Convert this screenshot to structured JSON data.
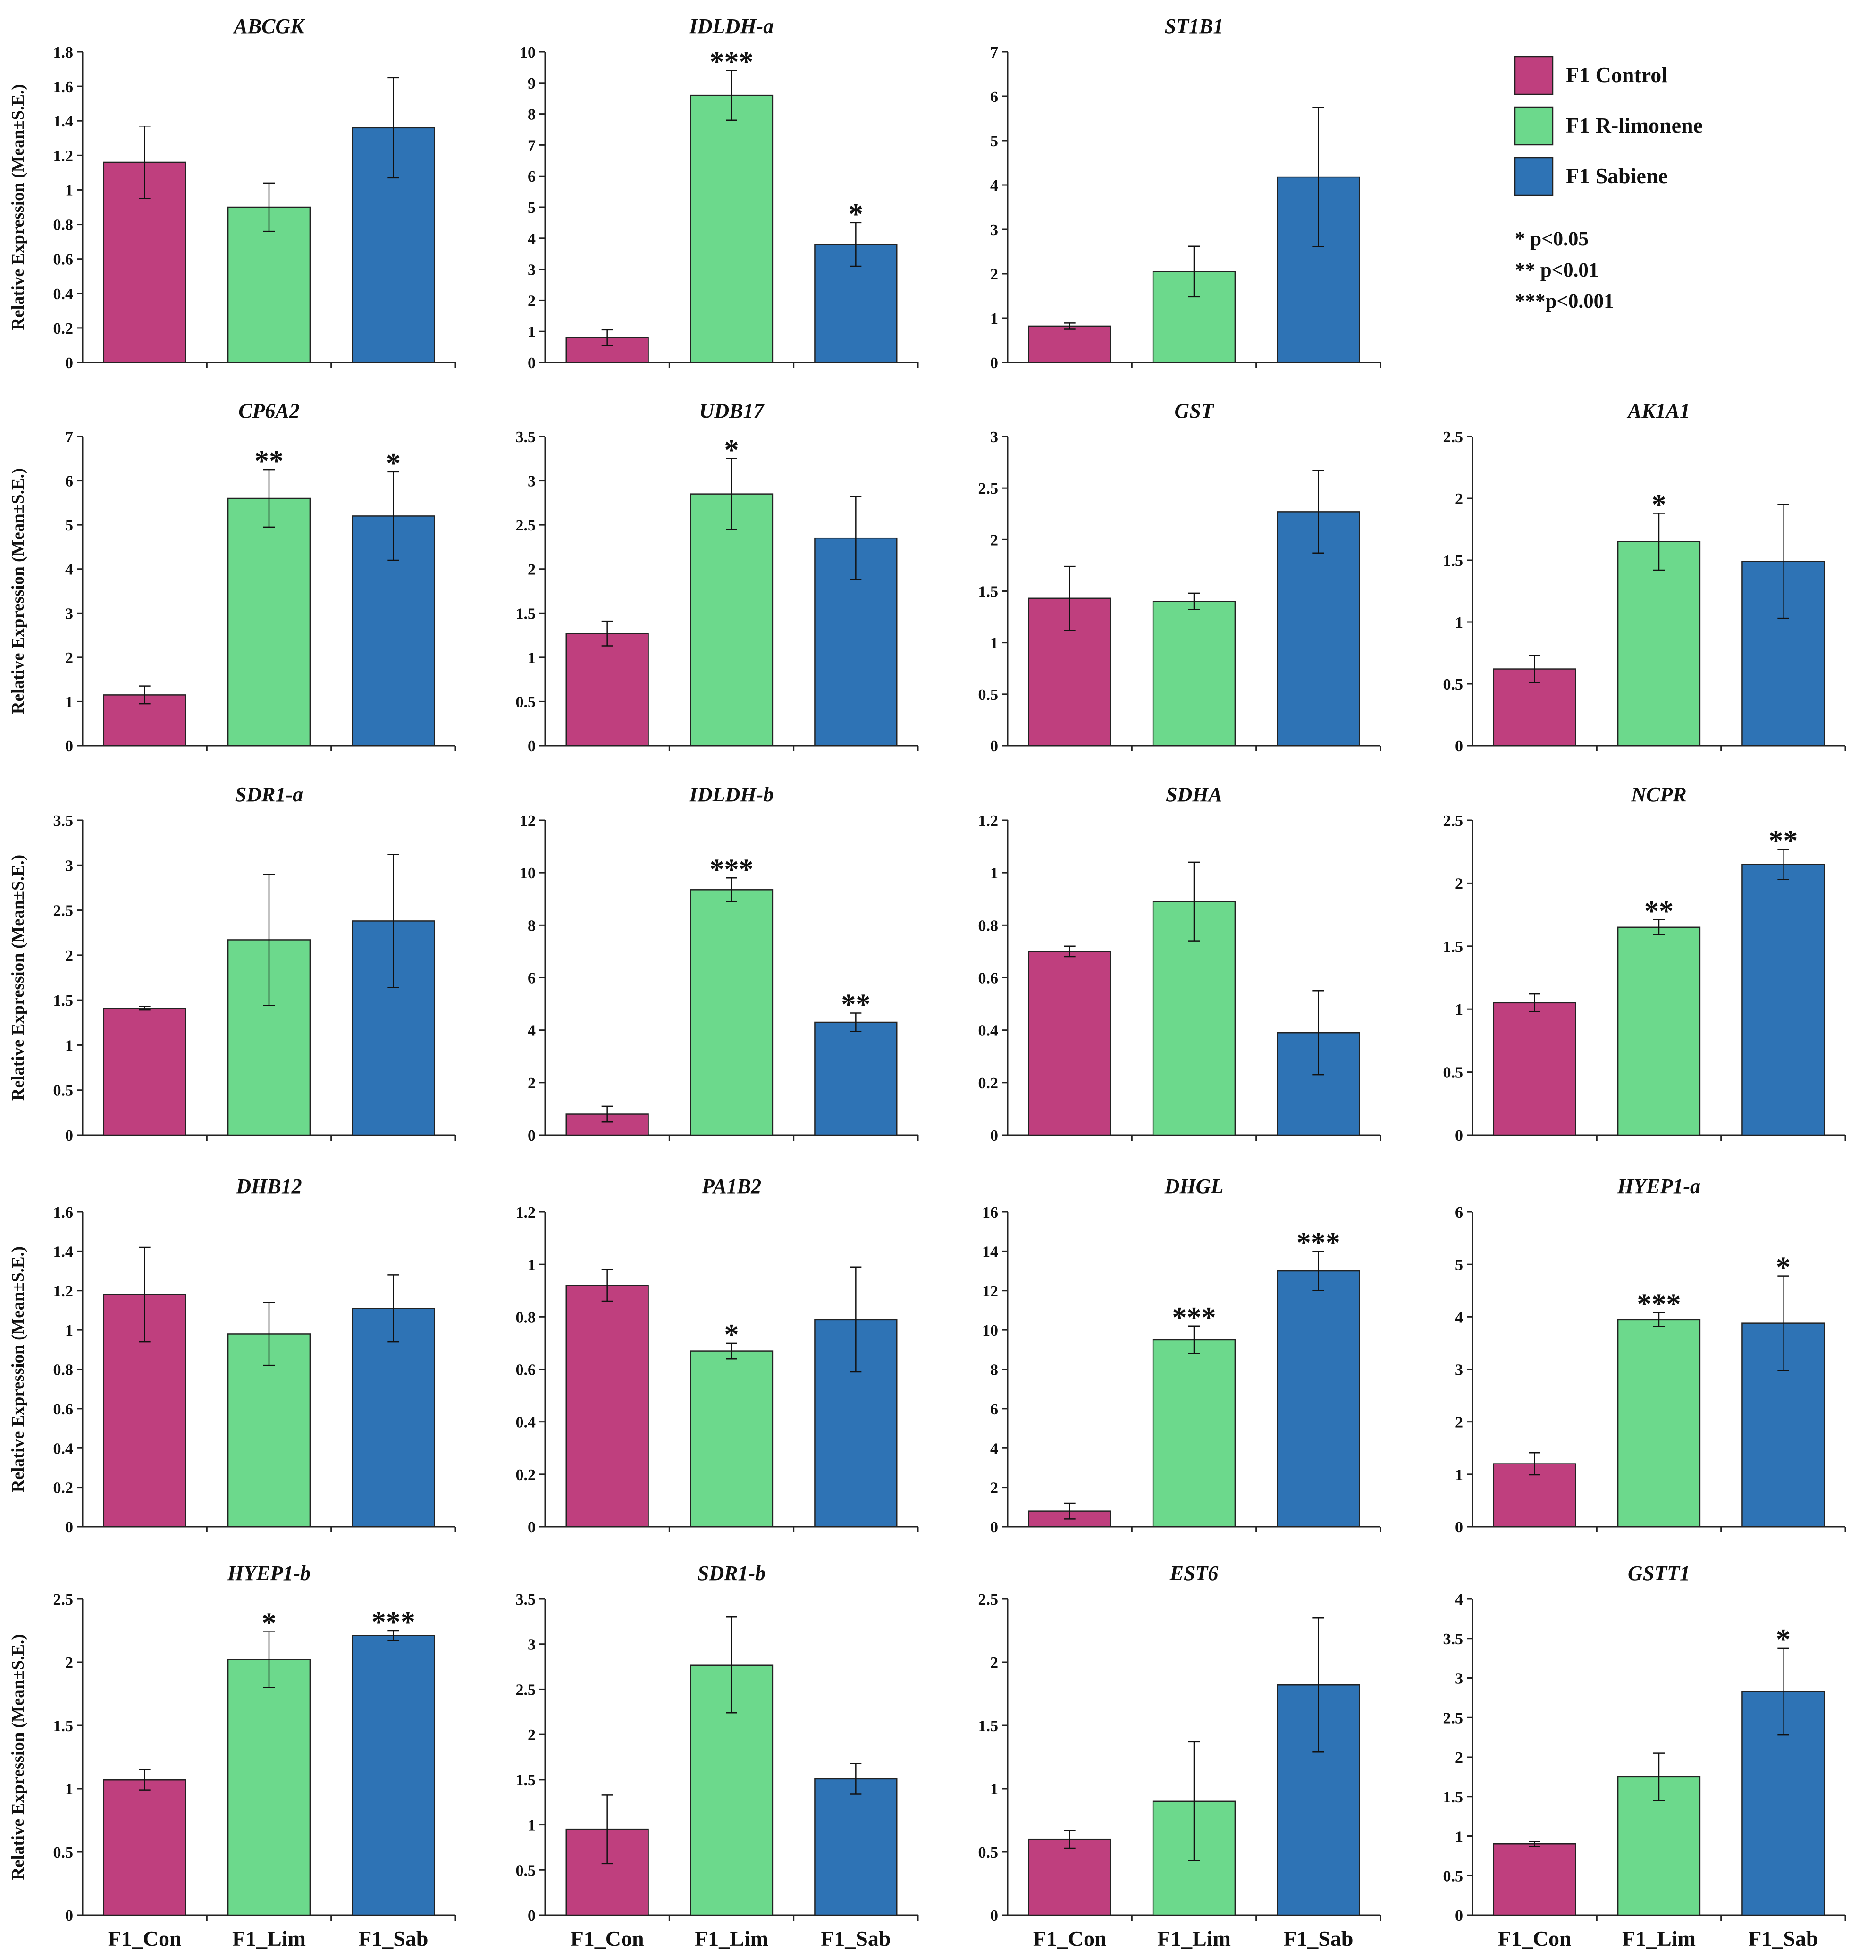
{
  "colors": {
    "control": "#bf3f7e",
    "limonene": "#6cd98c",
    "sabinene": "#2e73b5",
    "axis": "#222222"
  },
  "legend": {
    "items": [
      {
        "label": "F1 Control",
        "color": "#bf3f7e"
      },
      {
        "label": "F1 R-limonene",
        "color": "#6cd98c"
      },
      {
        "label": "F1 Sabiene",
        "color": "#2e73b5"
      }
    ],
    "significance": [
      "* p<0.05",
      "** p<0.01",
      "***p<0.001"
    ]
  },
  "ylabel": "Relative Expression (Mean±S.E.)",
  "categories": [
    "F1_Con",
    "F1_Lim",
    "F1_Sab"
  ],
  "chart_data": [
    {
      "type": "bar",
      "title": "ABCGK",
      "ylim": [
        0,
        1.8
      ],
      "ticks": [
        "0",
        "0.2",
        "0.4",
        "0.6",
        "0.8",
        "1",
        "1.2",
        "1.4",
        "1.6",
        "1.8"
      ],
      "values": [
        1.16,
        0.9,
        1.36
      ],
      "errors": [
        0.21,
        0.14,
        0.29
      ],
      "sig": [
        "",
        "",
        ""
      ]
    },
    {
      "type": "bar",
      "title": "IDLDH-a",
      "ylim": [
        0,
        10
      ],
      "ticks": [
        "0",
        "1",
        "2",
        "3",
        "4",
        "5",
        "6",
        "7",
        "8",
        "9",
        "10"
      ],
      "values": [
        0.8,
        8.6,
        3.8
      ],
      "errors": [
        0.25,
        0.8,
        0.7
      ],
      "sig": [
        "",
        "***",
        "*"
      ]
    },
    {
      "type": "bar",
      "title": "ST1B1",
      "ylim": [
        0,
        7
      ],
      "ticks": [
        "0",
        "1",
        "2",
        "3",
        "4",
        "5",
        "6",
        "7"
      ],
      "values": [
        0.82,
        2.05,
        4.18
      ],
      "errors": [
        0.07,
        0.57,
        1.57
      ],
      "sig": [
        "",
        "",
        ""
      ]
    },
    {
      "type": "bar",
      "title": "CP6A2",
      "ylim": [
        0,
        7
      ],
      "ticks": [
        "0",
        "1",
        "2",
        "3",
        "4",
        "5",
        "6",
        "7"
      ],
      "values": [
        1.15,
        5.6,
        5.2
      ],
      "errors": [
        0.2,
        0.65,
        1.0
      ],
      "sig": [
        "",
        "**",
        "*"
      ]
    },
    {
      "type": "bar",
      "title": "UDB17",
      "ylim": [
        0,
        3.5
      ],
      "ticks": [
        "0",
        "0.5",
        "1",
        "1.5",
        "2",
        "2.5",
        "3",
        "3.5"
      ],
      "values": [
        1.27,
        2.85,
        2.35
      ],
      "errors": [
        0.14,
        0.4,
        0.47
      ],
      "sig": [
        "",
        "*",
        ""
      ]
    },
    {
      "type": "bar",
      "title": "GST",
      "ylim": [
        0,
        3
      ],
      "ticks": [
        "0",
        "0.5",
        "1",
        "1.5",
        "2",
        "2.5",
        "3"
      ],
      "values": [
        1.43,
        1.4,
        2.27
      ],
      "errors": [
        0.31,
        0.08,
        0.4
      ],
      "sig": [
        "",
        "",
        ""
      ]
    },
    {
      "type": "bar",
      "title": "AK1A1",
      "ylim": [
        0,
        2.5
      ],
      "ticks": [
        "0",
        "0.5",
        "1",
        "1.5",
        "2",
        "2.5"
      ],
      "values": [
        0.62,
        1.65,
        1.49
      ],
      "errors": [
        0.11,
        0.23,
        0.46
      ],
      "sig": [
        "",
        "*",
        ""
      ]
    },
    {
      "type": "bar",
      "title": "SDR1-a",
      "ylim": [
        0,
        3.5
      ],
      "ticks": [
        "0",
        "0.5",
        "1",
        "1.5",
        "2",
        "2.5",
        "3",
        "3.5"
      ],
      "values": [
        1.41,
        2.17,
        2.38
      ],
      "errors": [
        0.02,
        0.73,
        0.74
      ],
      "sig": [
        "",
        "",
        ""
      ]
    },
    {
      "type": "bar",
      "title": "IDLDH-b",
      "ylim": [
        0,
        12
      ],
      "ticks": [
        "0",
        "2",
        "4",
        "6",
        "8",
        "10",
        "12"
      ],
      "values": [
        0.8,
        9.35,
        4.3
      ],
      "errors": [
        0.3,
        0.45,
        0.35
      ],
      "sig": [
        "",
        "***",
        "**"
      ]
    },
    {
      "type": "bar",
      "title": "SDHA",
      "ylim": [
        0,
        1.2
      ],
      "ticks": [
        "0",
        "0.2",
        "0.4",
        "0.6",
        "0.8",
        "1",
        "1.2"
      ],
      "values": [
        0.7,
        0.89,
        0.39
      ],
      "errors": [
        0.02,
        0.15,
        0.16
      ],
      "sig": [
        "",
        "",
        ""
      ]
    },
    {
      "type": "bar",
      "title": "NCPR",
      "ylim": [
        0,
        2.5
      ],
      "ticks": [
        "0",
        "0.5",
        "1",
        "1.5",
        "2",
        "2.5"
      ],
      "values": [
        1.05,
        1.65,
        2.15
      ],
      "errors": [
        0.07,
        0.06,
        0.12
      ],
      "sig": [
        "",
        "**",
        "**"
      ]
    },
    {
      "type": "bar",
      "title": "DHB12",
      "ylim": [
        0,
        1.6
      ],
      "ticks": [
        "0",
        "0.2",
        "0.4",
        "0.6",
        "0.8",
        "1",
        "1.2",
        "1.4",
        "1.6"
      ],
      "values": [
        1.18,
        0.98,
        1.11
      ],
      "errors": [
        0.24,
        0.16,
        0.17
      ],
      "sig": [
        "",
        "",
        ""
      ]
    },
    {
      "type": "bar",
      "title": "PA1B2",
      "ylim": [
        0,
        1.2
      ],
      "ticks": [
        "0",
        "0.2",
        "0.4",
        "0.6",
        "0.8",
        "1",
        "1.2"
      ],
      "values": [
        0.92,
        0.67,
        0.79
      ],
      "errors": [
        0.06,
        0.03,
        0.2
      ],
      "sig": [
        "",
        "*",
        ""
      ]
    },
    {
      "type": "bar",
      "title": "DHGL",
      "ylim": [
        0,
        16
      ],
      "ticks": [
        "0",
        "2",
        "4",
        "6",
        "8",
        "10",
        "12",
        "14",
        "16"
      ],
      "values": [
        0.8,
        9.5,
        13.0
      ],
      "errors": [
        0.4,
        0.7,
        1.0
      ],
      "sig": [
        "",
        "***",
        "***"
      ]
    },
    {
      "type": "bar",
      "title": "HYEP1-a",
      "ylim": [
        0,
        6
      ],
      "ticks": [
        "0",
        "1",
        "2",
        "3",
        "4",
        "5",
        "6"
      ],
      "values": [
        1.2,
        3.95,
        3.88
      ],
      "errors": [
        0.21,
        0.13,
        0.9
      ],
      "sig": [
        "",
        "***",
        "*"
      ]
    },
    {
      "type": "bar",
      "title": "HYEP1-b",
      "ylim": [
        0,
        2.5
      ],
      "ticks": [
        "0",
        "0.5",
        "1",
        "1.5",
        "2",
        "2.5"
      ],
      "values": [
        1.07,
        2.02,
        2.21
      ],
      "errors": [
        0.08,
        0.22,
        0.04
      ],
      "sig": [
        "",
        "*",
        "***"
      ]
    },
    {
      "type": "bar",
      "title": "SDR1-b",
      "ylim": [
        0,
        3.5
      ],
      "ticks": [
        "0",
        "0.5",
        "1",
        "1.5",
        "2",
        "2.5",
        "3",
        "3.5"
      ],
      "values": [
        0.95,
        2.77,
        1.51
      ],
      "errors": [
        0.38,
        0.53,
        0.17
      ],
      "sig": [
        "",
        "",
        ""
      ]
    },
    {
      "type": "bar",
      "title": "EST6",
      "ylim": [
        0,
        2.5
      ],
      "ticks": [
        "0",
        "0.5",
        "1",
        "1.5",
        "2",
        "2.5"
      ],
      "values": [
        0.6,
        0.9,
        1.82
      ],
      "errors": [
        0.07,
        0.47,
        0.53
      ],
      "sig": [
        "",
        "",
        ""
      ]
    },
    {
      "type": "bar",
      "title": "GSTT1",
      "ylim": [
        0,
        4
      ],
      "ticks": [
        "0",
        "0.5",
        "1",
        "1.5",
        "2",
        "2.5",
        "3",
        "3.5",
        "4"
      ],
      "values": [
        0.9,
        1.75,
        2.83
      ],
      "errors": [
        0.03,
        0.3,
        0.55
      ],
      "sig": [
        "",
        "",
        "*"
      ]
    }
  ]
}
